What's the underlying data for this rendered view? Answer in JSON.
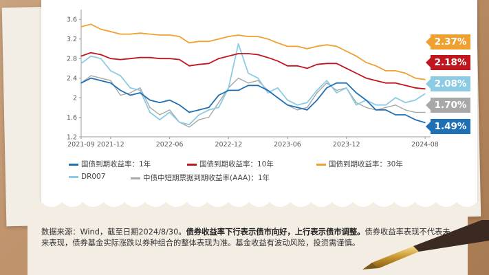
{
  "chart_data": {
    "type": "line",
    "x_ticks": [
      "2021-09",
      "2021-12",
      "2022-06",
      "2022-12",
      "2023-06",
      "2023-12",
      "2024-08"
    ],
    "y_ticks": [
      "1.2",
      "1.6",
      "2",
      "2.4",
      "2.8",
      "3.2",
      "3.6"
    ],
    "ylim": [
      1.2,
      3.8
    ],
    "grid": false,
    "legend_position": "bottom",
    "x": [
      "2021-09",
      "2021-10",
      "2021-11",
      "2021-12",
      "2022-01",
      "2022-02",
      "2022-03",
      "2022-04",
      "2022-05",
      "2022-06",
      "2022-07",
      "2022-08",
      "2022-09",
      "2022-10",
      "2022-11",
      "2022-12",
      "2023-01",
      "2023-02",
      "2023-03",
      "2023-04",
      "2023-05",
      "2023-06",
      "2023-07",
      "2023-08",
      "2023-09",
      "2023-10",
      "2023-11",
      "2023-12",
      "2024-01",
      "2024-02",
      "2024-03",
      "2024-04",
      "2024-05",
      "2024-06",
      "2024-07",
      "2024-08"
    ],
    "series": [
      {
        "name": "国债到期收益率：1年",
        "color": "#1f6fb5",
        "values": [
          2.3,
          2.4,
          2.35,
          2.3,
          2.15,
          2.05,
          2.1,
          1.95,
          1.9,
          1.95,
          1.85,
          1.7,
          1.75,
          1.8,
          2.05,
          2.15,
          2.15,
          2.25,
          2.25,
          2.15,
          2.0,
          1.85,
          1.8,
          1.75,
          1.95,
          2.2,
          2.3,
          2.3,
          2.1,
          1.95,
          1.75,
          1.75,
          1.65,
          1.65,
          1.55,
          1.49
        ]
      },
      {
        "name": "国债到期收益率：10年",
        "color": "#c0161d",
        "values": [
          2.85,
          2.92,
          2.88,
          2.8,
          2.78,
          2.8,
          2.82,
          2.82,
          2.8,
          2.8,
          2.78,
          2.65,
          2.68,
          2.7,
          2.8,
          2.85,
          2.9,
          2.9,
          2.88,
          2.82,
          2.75,
          2.65,
          2.65,
          2.6,
          2.68,
          2.7,
          2.7,
          2.6,
          2.5,
          2.4,
          2.35,
          2.3,
          2.3,
          2.25,
          2.2,
          2.18
        ]
      },
      {
        "name": "国债到期收益率：30年",
        "color": "#f0a030",
        "values": [
          3.45,
          3.5,
          3.4,
          3.35,
          3.3,
          3.3,
          3.32,
          3.3,
          3.28,
          3.28,
          3.25,
          3.12,
          3.15,
          3.15,
          3.2,
          3.25,
          3.28,
          3.25,
          3.25,
          3.2,
          3.12,
          3.05,
          3.05,
          3.0,
          3.05,
          3.08,
          3.05,
          2.95,
          2.85,
          2.72,
          2.65,
          2.55,
          2.55,
          2.5,
          2.4,
          2.37
        ]
      },
      {
        "name": "DR007",
        "color": "#8ccbe4",
        "values": [
          2.7,
          2.85,
          2.8,
          2.55,
          2.45,
          2.2,
          2.15,
          1.7,
          1.55,
          1.7,
          1.5,
          1.45,
          1.65,
          1.75,
          1.8,
          2.2,
          3.1,
          2.5,
          2.4,
          2.1,
          2.2,
          1.95,
          1.85,
          1.9,
          2.15,
          2.35,
          2.1,
          2.2,
          1.85,
          1.95,
          1.85,
          1.85,
          2.0,
          1.9,
          1.95,
          2.08
        ]
      },
      {
        "name": "中债中短期票据到期收益率(AAA)：1年",
        "color": "#a8a8a8",
        "values": [
          2.3,
          2.45,
          2.4,
          2.35,
          2.05,
          2.1,
          2.2,
          1.8,
          1.65,
          1.75,
          1.5,
          1.4,
          1.55,
          1.6,
          1.9,
          2.2,
          2.4,
          2.3,
          2.35,
          2.15,
          2.0,
          1.85,
          1.75,
          1.8,
          2.1,
          2.3,
          2.15,
          2.2,
          1.9,
          1.8,
          1.75,
          1.8,
          1.85,
          1.75,
          1.7,
          1.7
        ]
      }
    ],
    "end_labels": [
      {
        "text": "2.37%",
        "color": "#f0a030",
        "value": 2.37
      },
      {
        "text": "2.18%",
        "color": "#c0161d",
        "value": 2.18
      },
      {
        "text": "2.08%",
        "color": "#8ccbe4",
        "value": 2.08
      },
      {
        "text": "1.70%",
        "color": "#a8a8a8",
        "value": 1.7
      },
      {
        "text": "1.49%",
        "color": "#1f6fb5",
        "value": 1.49
      }
    ]
  },
  "legend": [
    {
      "label": "国债到期收益率：1年",
      "color": "#1f6fb5"
    },
    {
      "label": "国债到期收益率：10年",
      "color": "#c0161d"
    },
    {
      "label": "国债到期收益率：30年",
      "color": "#f0a030"
    },
    {
      "label": "DR007",
      "color": "#8ccbe4"
    },
    {
      "label": "中债中短期票据到期收益率(AAA)：1年",
      "color": "#a8a8a8"
    }
  ],
  "note": {
    "prefix": "数据来源：Wind，截至日期2024/8/30。",
    "bold": "债券收益率下行表示债市向好，上行表示债市调整。",
    "suffix": "债券收益率表现不代表未来表现，债券基金实际涨跌以券种组合的整体表现为准。基金收益有波动风险，投资需谨慎。"
  }
}
